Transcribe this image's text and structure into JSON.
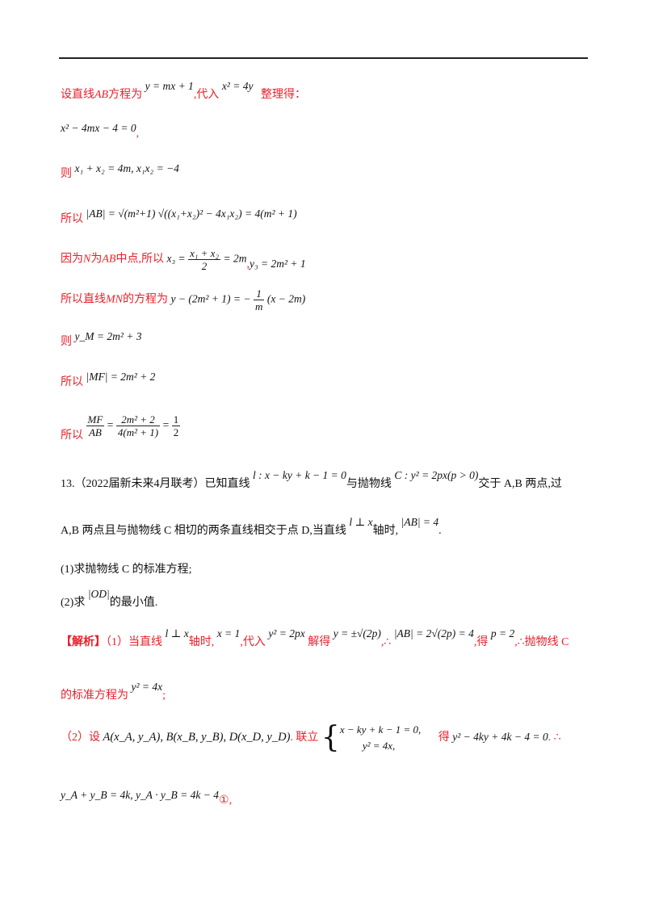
{
  "line1": {
    "t1": "设直线",
    "ab": "AB",
    "t2": "方程为",
    "eq1": "y = mx + 1",
    "t3": ",代入",
    "eq2": "x² = 4y",
    "t4": "整理得："
  },
  "line2": {
    "eq": "x² − 4mx − 4 = 0",
    "mark": ","
  },
  "line3": {
    "ze": "则",
    "eq": "x₁ + x₂ = 4m, x₁x₂ = −4"
  },
  "line4": {
    "label": "所以",
    "eq": "|AB| = √(m²+1) √((x₁+x₂)² − 4x₁x₂) = 4(m² + 1)"
  },
  "line5": {
    "t1": "因为",
    "n": "N",
    "t2": "为",
    "ab": "AB",
    "t3": "中点,所以",
    "lhs": "x₃ =",
    "num": "x₁ + x₂",
    "den": "2",
    "rhs": "= 2m",
    "sep": ",",
    "eq2": "y₃ = 2m² + 1"
  },
  "line6": {
    "t1": "所以直线",
    "mn": "MN",
    "t2": "的方程为",
    "lhs": "y − (2m² + 1) = −",
    "num": "1",
    "den": "m",
    "rhs": "(x − 2m)"
  },
  "line7": {
    "ze": "则",
    "eq": "y_M = 2m² + 3"
  },
  "line8": {
    "label": "所以",
    "eq": "|MF| = 2m² + 2"
  },
  "line9": {
    "label": "所以",
    "n1": "MF",
    "d1": "AB",
    "eq": "=",
    "n2": "2m² + 2",
    "d2": "4(m² + 1)",
    "eq2": "=",
    "n3": "1",
    "d3": "2"
  },
  "q13": {
    "num": "13.",
    "src": "（2022届新未来4月联考）已知直线",
    "line_eq": "l : x − ky + k − 1 = 0",
    "t2": "与抛物线",
    "parab": "C : y² = 2px(p > 0)",
    "t3": "交于 A,B 两点,过",
    "t4": "A,B 两点且与抛物线 C 相切的两条直线相交于点 D,当直线",
    "perp": "l ⊥ x",
    "t5": "轴时,",
    "absab": "|AB| = 4",
    "t6": ".",
    "p1": "(1)求抛物线 C 的标准方程;",
    "p2a": "(2)求",
    "od": "|OD|",
    "p2b": "的最小值."
  },
  "sol": {
    "tag": "【解析】",
    "s1": "（1）当直线",
    "perp": "l ⊥ x",
    "s2": "轴时,",
    "x1": "x = 1",
    "s3": ",代入",
    "e1": "y² = 2px",
    "s4": "解得",
    "e2": "y = ±√(2p)",
    "s5": ",∴",
    "e3": "|AB| = 2√(2p) = 4",
    "s6": ",得",
    "e4": "p = 2",
    "s7": ",∴抛物线 C",
    "s8": "的标准方程为",
    "e5": "y² = 4x",
    "s9": ";",
    "s10": "（2）设",
    "pts": "A(x_A, y_A), B(x_B, y_B), D(x_D, y_D)",
    "s11": ". 联立",
    "sys1": "x − ky + k − 1 = 0,",
    "sys2": "y² = 4x,",
    "s12": "得",
    "e6": "y² − 4ky + 4k − 4 = 0",
    "s13": ". ∴",
    "e7": "y_A + y_B = 4k, y_A · y_B = 4k − 4",
    "circ": "①,"
  }
}
